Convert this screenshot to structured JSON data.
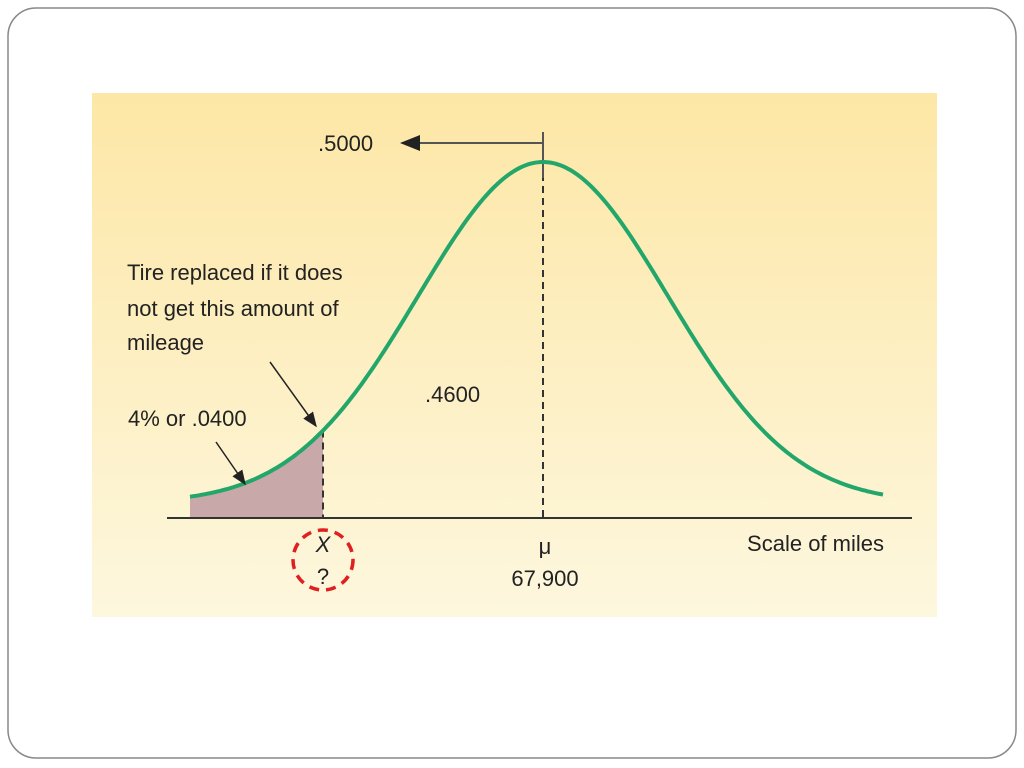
{
  "diagram": {
    "top_probability": ".5000",
    "annotation": [
      "Tire replaced if it does",
      "not get this amount of",
      "mileage"
    ],
    "tail_label": "4% or .0400",
    "middle_probability": ".4600",
    "x_symbol": "X",
    "x_unknown": "?",
    "mean_symbol": "μ",
    "mean_value": "67,900",
    "axis_label": "Scale of miles"
  }
}
